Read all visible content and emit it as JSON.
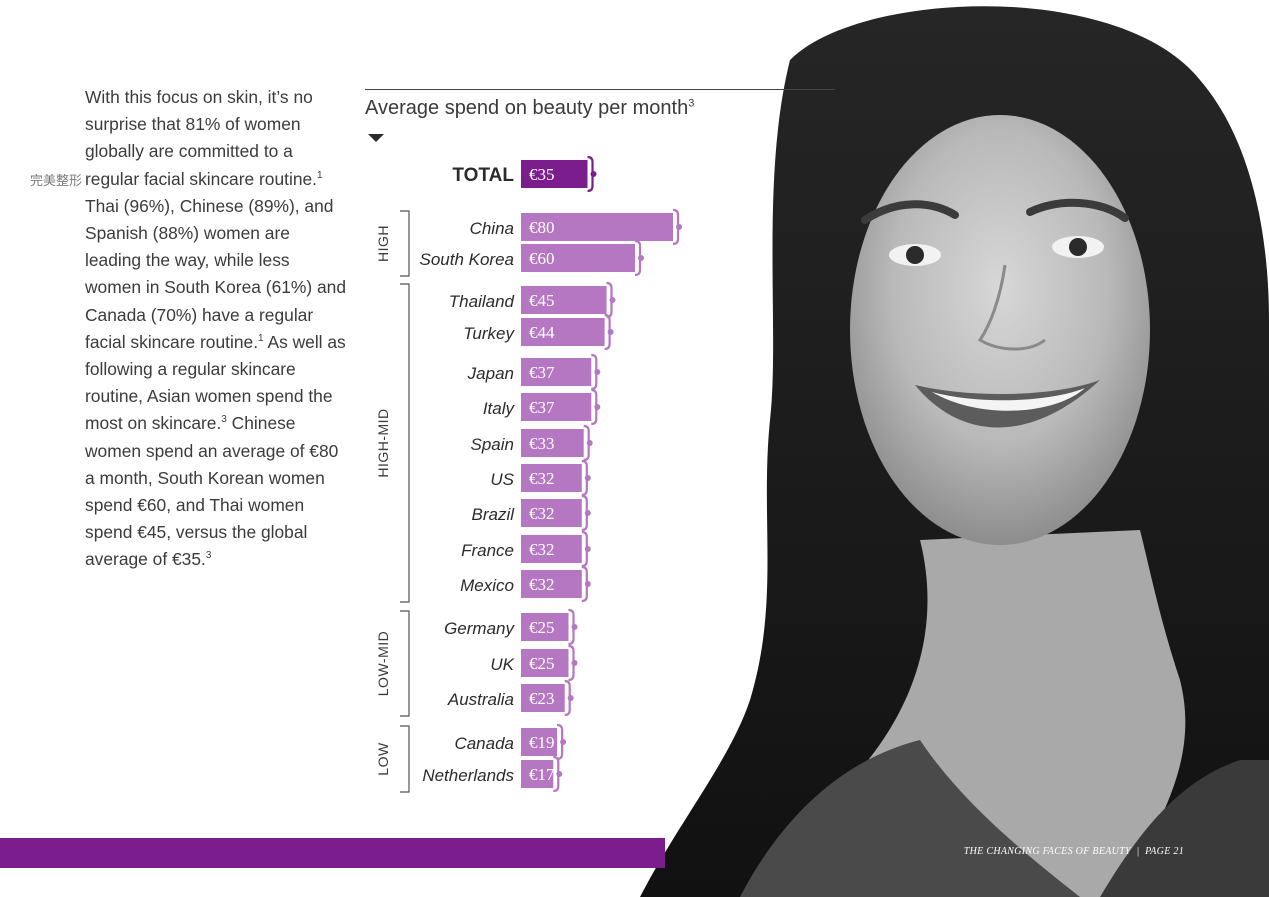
{
  "body_text": {
    "p1": "With this focus on skin, it’s no surprise that 81% of women globally are committed to a regular facial skincare routine.",
    "r1": "1",
    "p2": " Thai (96%), Chinese (89%), and Spanish (88%) women are leading the way, while less women in South Korea (61%) and Canada (70%) have a regular facial skincare routine.",
    "r2": "1",
    "p3": " As well as following a regular skincare routine, Asian women spend the most on skincare.",
    "r3": "3",
    "p4": " Chinese women spend an average of €80 a month, South Korean women spend €60, and Thai women spend €45, versus the global average of €35.",
    "r4": "3"
  },
  "watermark": "完美整形",
  "footer": {
    "title": "THE CHANGING FACES OF BEAUTY",
    "page": "PAGE 21"
  },
  "colors": {
    "total_bar": "#7b1d8d",
    "bar": "#b576c2",
    "band": "#7b1d8d"
  },
  "chart_data": {
    "type": "bar",
    "orientation": "horizontal",
    "title": "Average spend on beauty per month",
    "title_ref": "3",
    "unit": "€",
    "total": {
      "label": "TOTAL",
      "value": 35,
      "display": "€35"
    },
    "categories": [
      "China",
      "South Korea",
      "Thailand",
      "Turkey",
      "Japan",
      "Italy",
      "Spain",
      "US",
      "Brazil",
      "France",
      "Mexico",
      "Germany",
      "UK",
      "Australia",
      "Canada",
      "Netherlands"
    ],
    "values": [
      80,
      60,
      45,
      44,
      37,
      37,
      33,
      32,
      32,
      32,
      32,
      25,
      25,
      23,
      19,
      17
    ],
    "display_values": [
      "€80",
      "€60",
      "€45",
      "€44",
      "€37",
      "€37",
      "€33",
      "€32",
      "€32",
      "€32",
      "€32",
      "€25",
      "€25",
      "€23",
      "€19",
      "€17"
    ],
    "groups": [
      {
        "label": "HIGH",
        "members": [
          "China",
          "South Korea"
        ]
      },
      {
        "label": "HIGH-MID",
        "members": [
          "Thailand",
          "Turkey",
          "Japan",
          "Italy",
          "Spain",
          "US",
          "Brazil",
          "France",
          "Mexico"
        ]
      },
      {
        "label": "LOW-MID",
        "members": [
          "Germany",
          "UK",
          "Australia"
        ]
      },
      {
        "label": "LOW",
        "members": [
          "Canada",
          "Netherlands"
        ]
      }
    ],
    "legend": "none",
    "grid": false
  }
}
